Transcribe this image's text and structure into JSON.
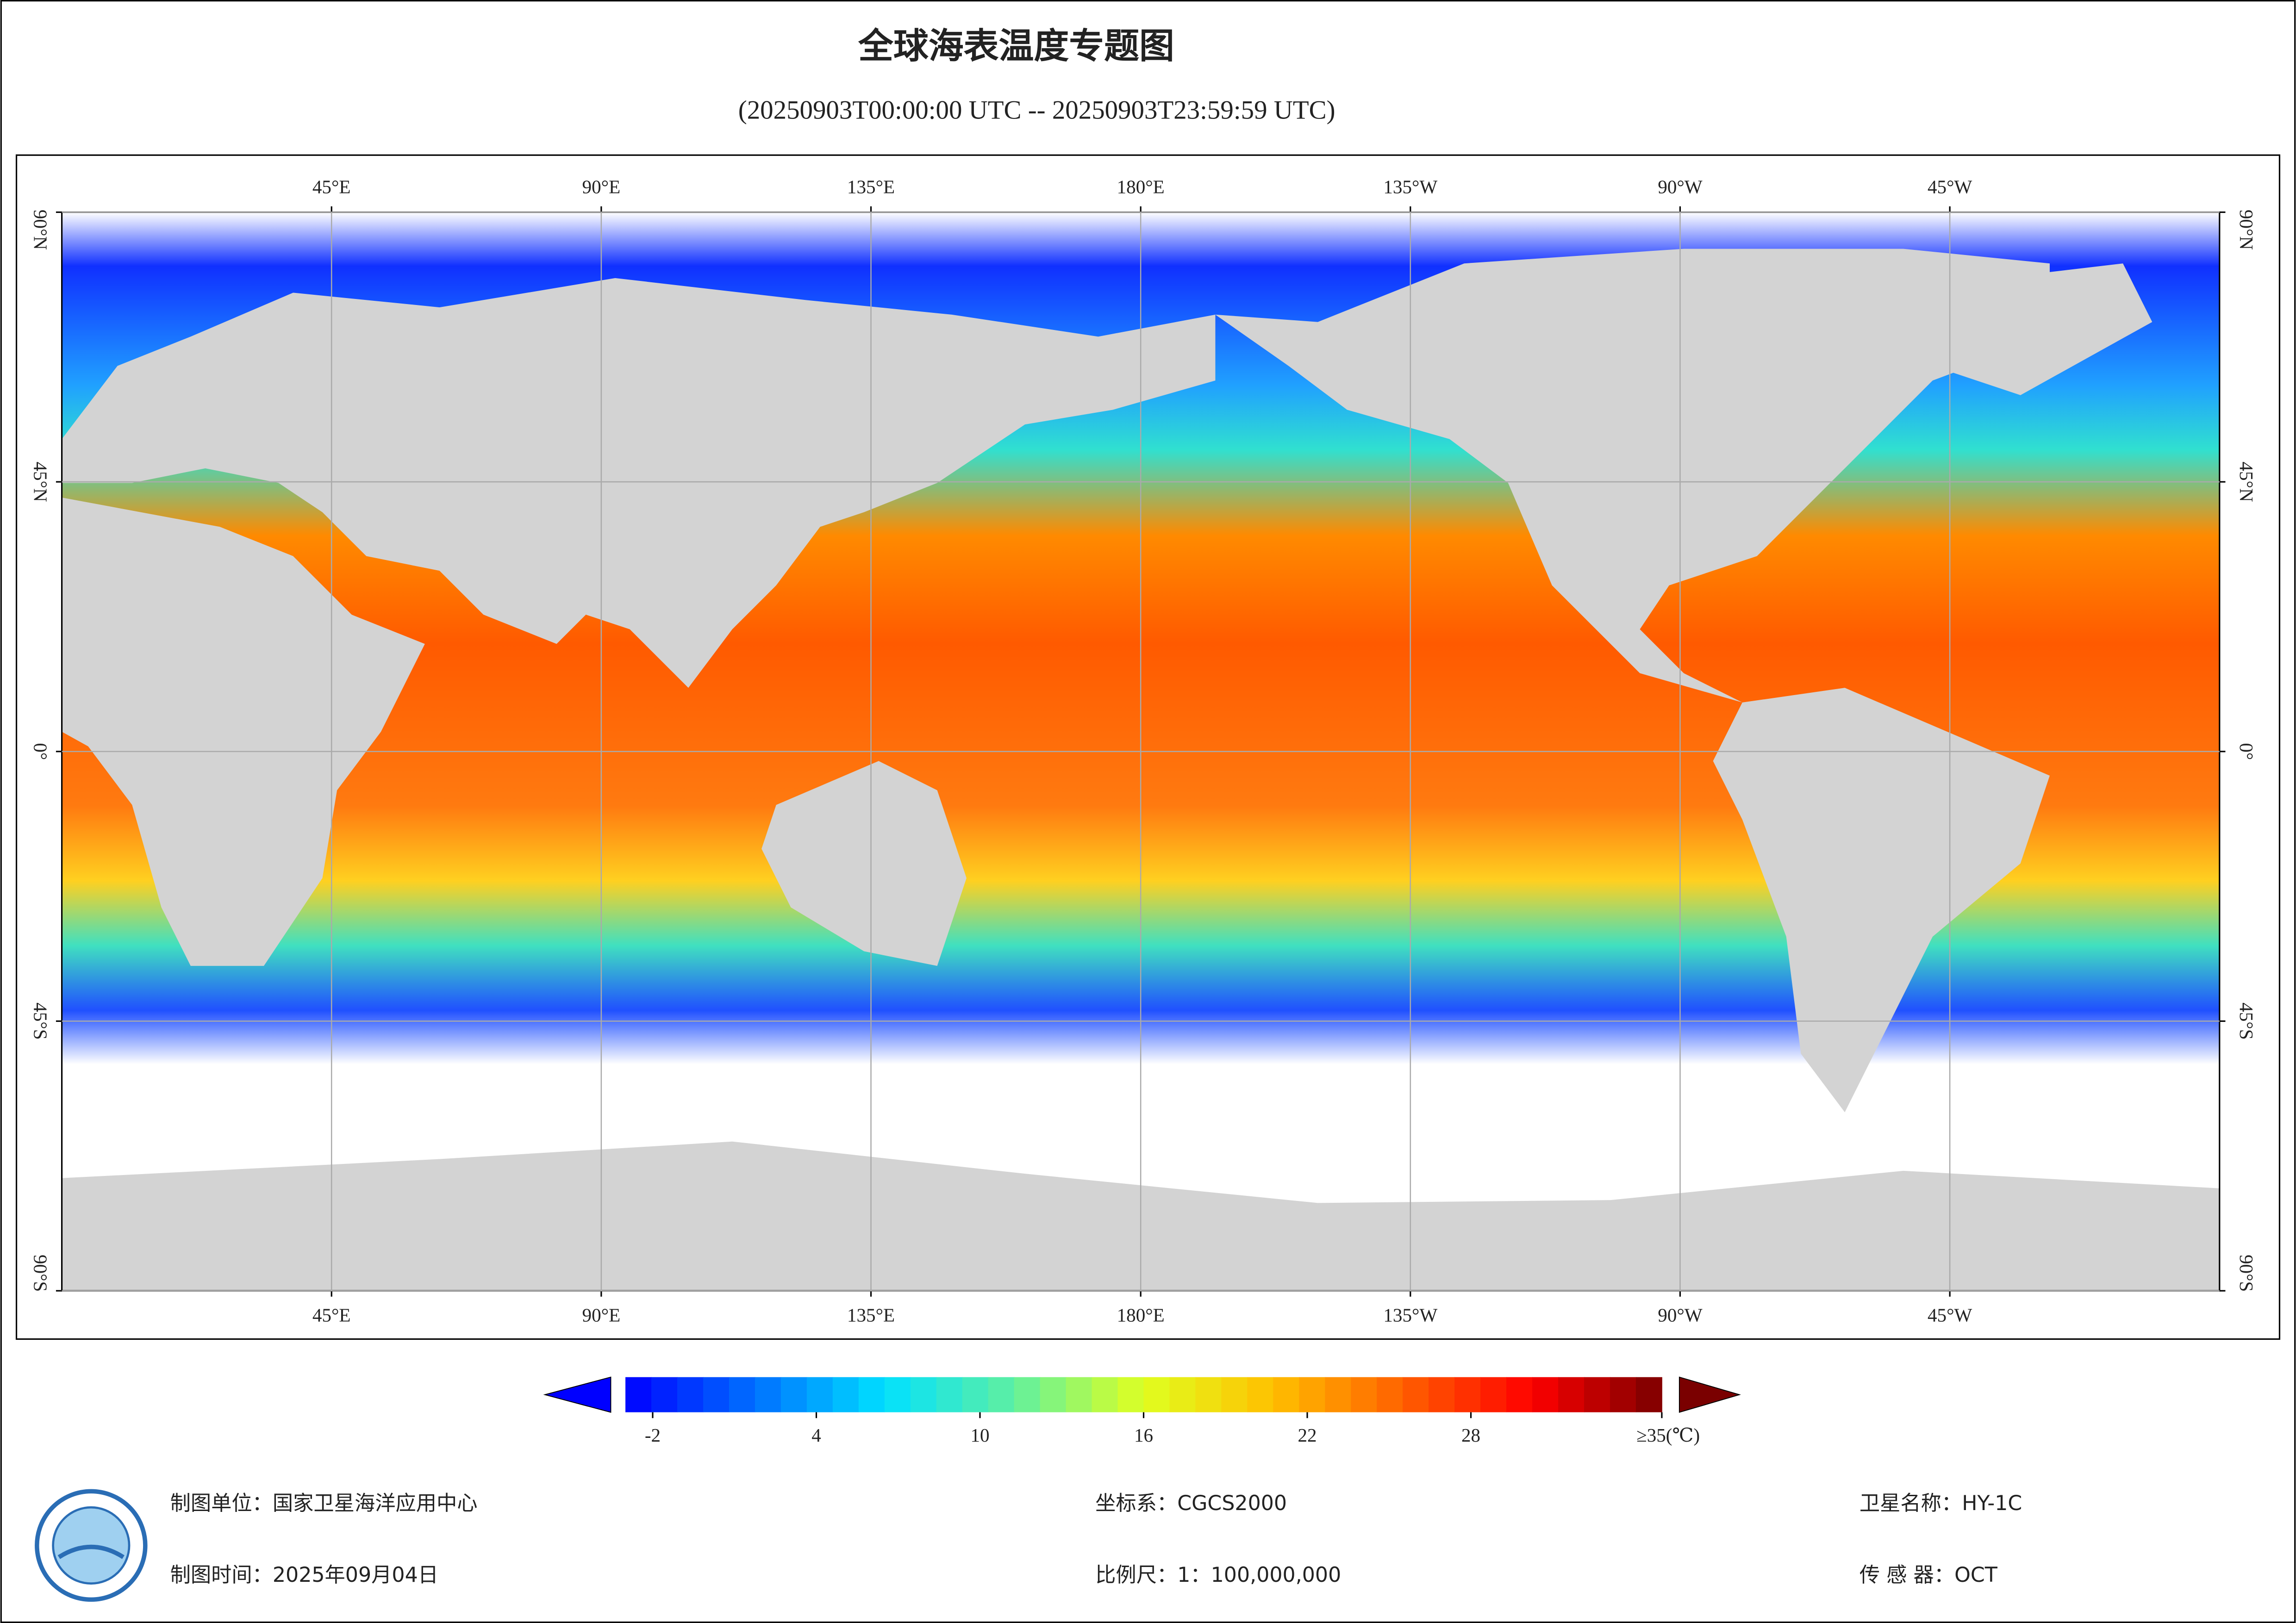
{
  "title": "全球海表温度专题图",
  "subtitle": "(20250903T00:00:00 UTC -- 20250903T23:59:59 UTC)",
  "map": {
    "lonlim": [
      0,
      360
    ],
    "latlim": [
      -90,
      90
    ],
    "lonticks": [
      {
        "value": 45,
        "label": "45°E"
      },
      {
        "value": 90,
        "label": "90°E"
      },
      {
        "value": 135,
        "label": "135°E"
      },
      {
        "value": 180,
        "label": "180°E"
      },
      {
        "value": 225,
        "label": "135°W"
      },
      {
        "value": 270,
        "label": "90°W"
      },
      {
        "value": 315,
        "label": "45°W"
      }
    ],
    "latticks": [
      {
        "value": 90,
        "label": "90°N"
      },
      {
        "value": 45,
        "label": "45°N"
      },
      {
        "value": 0,
        "label": "0°"
      },
      {
        "value": -45,
        "label": "45°S"
      },
      {
        "value": -90,
        "label": "90°S"
      }
    ],
    "grid": true
  },
  "colorbar": {
    "range": [
      -3,
      35
    ],
    "ticks": [
      -2,
      4,
      10,
      16,
      22,
      28,
      {
        "value": 35,
        "label": "≥35(℃)"
      }
    ],
    "colormap": [
      "#0000ff",
      "#0070ff",
      "#00e0ff",
      "#60f0a0",
      "#e0ff20",
      "#ffc000",
      "#ff6000",
      "#ff0000",
      "#7a0000"
    ]
  },
  "footer": {
    "unit": "制图单位：国家卫星海洋应用中心",
    "time": "制图时间：2025年09月04日",
    "crs": "坐标系：CGCS2000",
    "scale": "比例尺：1：100,000,000",
    "satellite": "卫星名称：HY-1C",
    "sensor": "传 感 器：OCT"
  }
}
